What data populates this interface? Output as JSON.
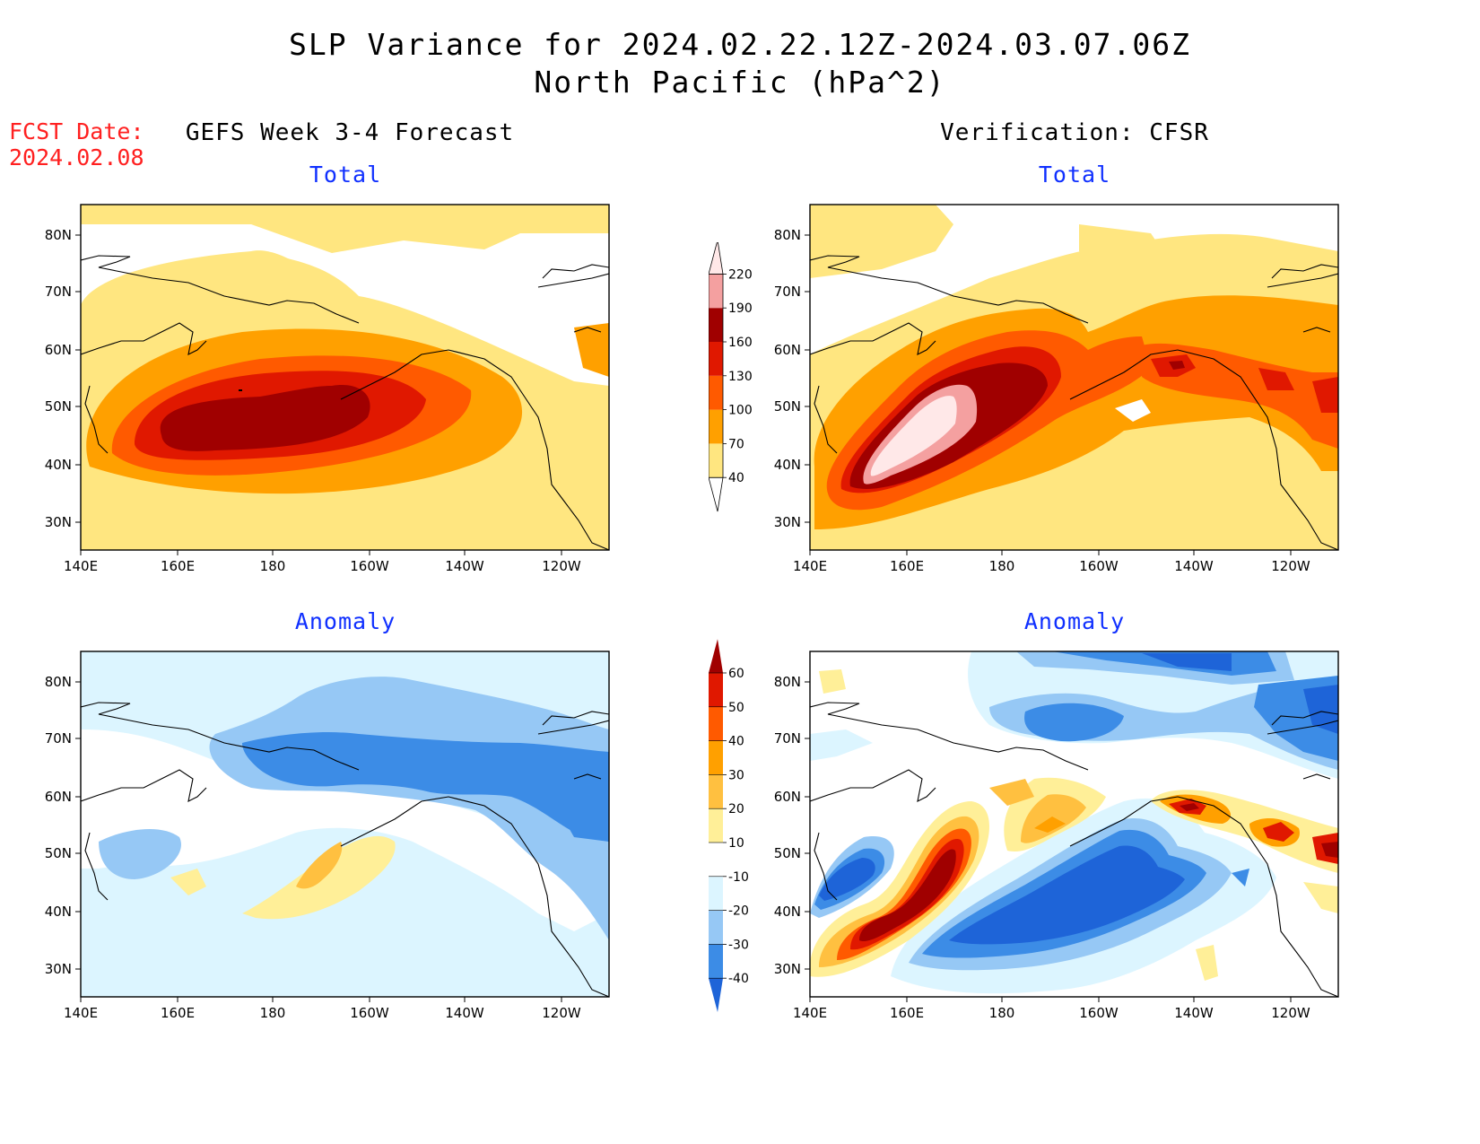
{
  "title": {
    "line1": "SLP Variance for 2024.02.22.12Z-2024.03.07.06Z",
    "line2": "North Pacific (hPa^2)"
  },
  "fcst_date": {
    "label": "FCST Date:",
    "value": "2024.02.08"
  },
  "columns": {
    "left": "GEFS Week 3-4 Forecast",
    "right": "Verification: CFSR"
  },
  "panels": {
    "total_label": "Total",
    "anomaly_label": "Anomaly"
  },
  "axes": {
    "lon_labels": [
      "140E",
      "160E",
      "180",
      "160W",
      "140W",
      "120W"
    ],
    "lat_labels": [
      "80N",
      "70N",
      "60N",
      "50N",
      "40N",
      "30N"
    ]
  },
  "colorbars": {
    "total": {
      "levels": [
        "40",
        "70",
        "100",
        "130",
        "160",
        "190",
        "220"
      ],
      "colors": [
        "#ffffff",
        "#ffe680",
        "#ffa000",
        "#ff5a00",
        "#e01800",
        "#a00000",
        "#f4a0a0",
        "#ffe8e8"
      ]
    },
    "anomaly": {
      "levels": [
        "-40",
        "-30",
        "-20",
        "-10",
        "10",
        "20",
        "30",
        "40",
        "50",
        "60"
      ],
      "colors": [
        "#1e64d8",
        "#3c8ce6",
        "#96c8f5",
        "#dcf5ff",
        "#ffffff",
        "#ffef98",
        "#ffc040",
        "#ffa000",
        "#ff5a00",
        "#e01800",
        "#a00000"
      ]
    }
  },
  "colors": {
    "title": "#000000",
    "fcst": "#ff2020",
    "subtitle": "#1030ff"
  }
}
